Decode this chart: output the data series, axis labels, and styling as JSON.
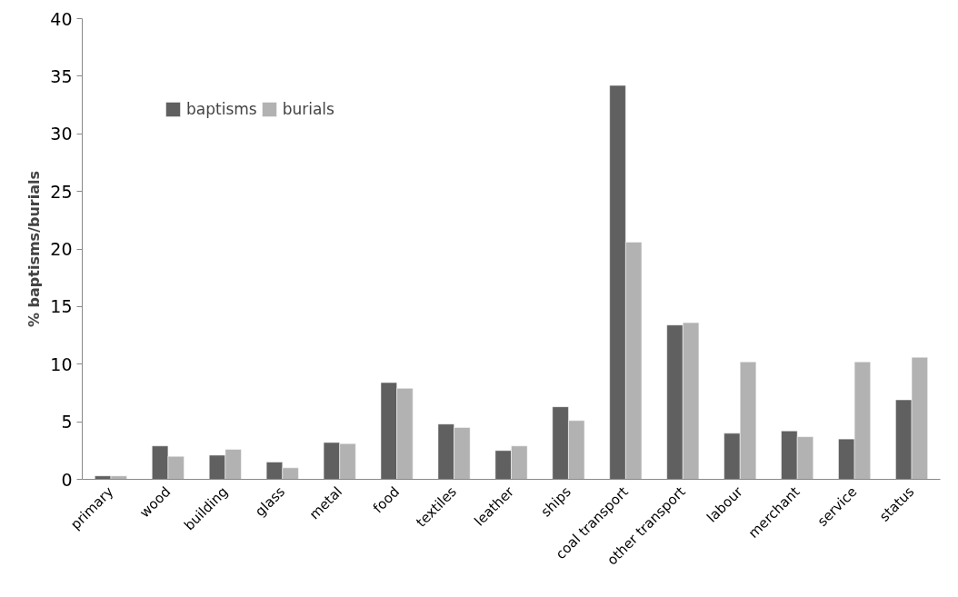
{
  "chart_data": {
    "type": "bar",
    "ylabel": "% baptisms/burials",
    "categories": [
      "primary",
      "wood",
      "building",
      "glass",
      "metal",
      "food",
      "textiles",
      "leather",
      "ships",
      "coal transport",
      "other transport",
      "labour",
      "merchant",
      "service",
      "status"
    ],
    "series": [
      {
        "name": "baptisms",
        "color": "#606060",
        "values": [
          0.3,
          2.9,
          2.1,
          1.5,
          3.2,
          8.4,
          4.8,
          2.5,
          6.3,
          34.2,
          13.4,
          4.0,
          4.2,
          3.5,
          6.9
        ]
      },
      {
        "name": "burials",
        "color": "#b2b2b2",
        "values": [
          0.3,
          2.0,
          2.6,
          1.0,
          3.1,
          7.9,
          4.5,
          2.9,
          5.1,
          20.6,
          13.6,
          10.2,
          3.7,
          10.2,
          10.6
        ]
      }
    ],
    "ylim": [
      0,
      40
    ],
    "yticks": [
      0,
      5,
      10,
      15,
      20,
      25,
      30,
      35,
      40
    ],
    "grid": false,
    "legend": "top left"
  }
}
